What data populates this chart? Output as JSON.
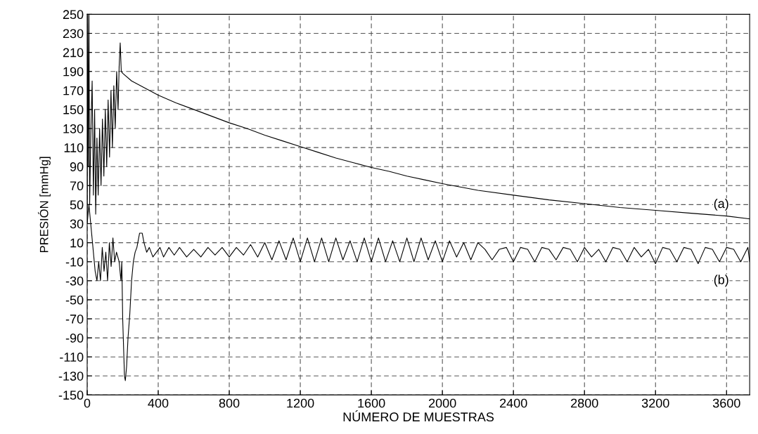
{
  "chart_data": {
    "type": "line",
    "xlabel": "NÚMERO DE MUESTRAS",
    "ylabel": "PRESIÓN [mmHg]",
    "xlim": [
      0,
      3730
    ],
    "xticks": [
      0,
      400,
      800,
      1200,
      1600,
      2000,
      2400,
      2800,
      3200,
      3600
    ],
    "ylim": [
      -150,
      250
    ],
    "yticks": [
      -150,
      -130,
      -110,
      -90,
      -70,
      -50,
      -30,
      -10,
      10,
      30,
      50,
      70,
      90,
      110,
      130,
      150,
      170,
      190,
      210,
      230,
      250
    ],
    "grid": true,
    "line_style": "solid",
    "marker": "none",
    "annotations": [
      {
        "text": "(a)",
        "x": 3570,
        "y": 50
      },
      {
        "text": "(b)",
        "x": 3570,
        "y": -30
      }
    ],
    "series": [
      {
        "color": "#000000",
        "x": [
          0,
          3,
          6,
          10,
          14,
          20,
          28,
          35,
          42,
          48,
          55,
          62,
          70,
          78,
          86,
          94,
          102,
          110,
          118,
          126,
          134,
          142,
          150,
          158,
          166,
          174,
          180,
          186,
          192,
          200,
          250,
          300,
          350,
          400,
          500,
          600,
          700,
          800,
          900,
          1000,
          1100,
          1200,
          1300,
          1400,
          1500,
          1600,
          1700,
          1800,
          1900,
          2000,
          2200,
          2400,
          2600,
          2800,
          3000,
          3200,
          3400,
          3600,
          3730
        ],
        "values": [
          35,
          250,
          90,
          250,
          50,
          120,
          180,
          60,
          150,
          40,
          120,
          60,
          130,
          70,
          140,
          80,
          150,
          90,
          160,
          100,
          170,
          110,
          175,
          130,
          190,
          150,
          195,
          220,
          190,
          188,
          180,
          175,
          170,
          165,
          157,
          150,
          143,
          136,
          130,
          123,
          117,
          111,
          105,
          99,
          94,
          89,
          85,
          80,
          76,
          72,
          65,
          60,
          55,
          51,
          47,
          44,
          41,
          38,
          35
        ]
      },
      {
        "color": "#000000",
        "x": [
          0,
          10,
          20,
          35,
          45,
          55,
          65,
          75,
          85,
          95,
          105,
          115,
          125,
          135,
          145,
          155,
          165,
          180,
          190,
          195,
          200,
          210,
          215,
          222,
          230,
          240,
          250,
          260,
          270,
          280,
          295,
          310,
          320,
          335,
          350,
          370,
          390,
          410,
          430,
          460,
          490,
          520,
          560,
          600,
          640,
          680,
          720,
          760,
          800,
          840,
          880,
          920,
          960,
          1000,
          1040,
          1080,
          1120,
          1160,
          1200,
          1240,
          1280,
          1320,
          1360,
          1400,
          1440,
          1480,
          1520,
          1560,
          1600,
          1640,
          1680,
          1720,
          1760,
          1800,
          1840,
          1880,
          1920,
          1960,
          2000,
          2040,
          2080,
          2120,
          2160,
          2200,
          2240,
          2280,
          2320,
          2360,
          2400,
          2440,
          2480,
          2520,
          2560,
          2600,
          2640,
          2680,
          2720,
          2760,
          2800,
          2840,
          2880,
          2920,
          2960,
          3000,
          3040,
          3080,
          3120,
          3160,
          3200,
          3240,
          3280,
          3320,
          3360,
          3400,
          3440,
          3480,
          3520,
          3560,
          3600,
          3640,
          3680,
          3720,
          3730
        ],
        "values": [
          30,
          50,
          30,
          0,
          -20,
          -30,
          -10,
          -30,
          5,
          -20,
          0,
          -30,
          10,
          -15,
          15,
          -10,
          0,
          -10,
          -30,
          -10,
          -70,
          -130,
          -135,
          -120,
          -90,
          -65,
          -30,
          -10,
          0,
          5,
          20,
          20,
          10,
          0,
          5,
          -5,
          0,
          5,
          -5,
          5,
          -3,
          5,
          -5,
          3,
          -5,
          5,
          -3,
          5,
          -5,
          5,
          -3,
          8,
          -5,
          10,
          -8,
          12,
          -8,
          15,
          -10,
          15,
          -10,
          15,
          -10,
          15,
          -8,
          12,
          -10,
          15,
          -10,
          15,
          -10,
          12,
          -10,
          15,
          -10,
          15,
          -8,
          12,
          -10,
          12,
          -5,
          10,
          -8,
          10,
          3,
          -8,
          3,
          5,
          -10,
          5,
          3,
          -10,
          5,
          3,
          -8,
          5,
          3,
          -10,
          5,
          -5,
          3,
          -10,
          5,
          3,
          -10,
          5,
          -5,
          3,
          -12,
          5,
          3,
          -10,
          5,
          3,
          -12,
          5,
          3,
          -10,
          5,
          3,
          -10,
          5,
          -10
        ]
      }
    ]
  }
}
